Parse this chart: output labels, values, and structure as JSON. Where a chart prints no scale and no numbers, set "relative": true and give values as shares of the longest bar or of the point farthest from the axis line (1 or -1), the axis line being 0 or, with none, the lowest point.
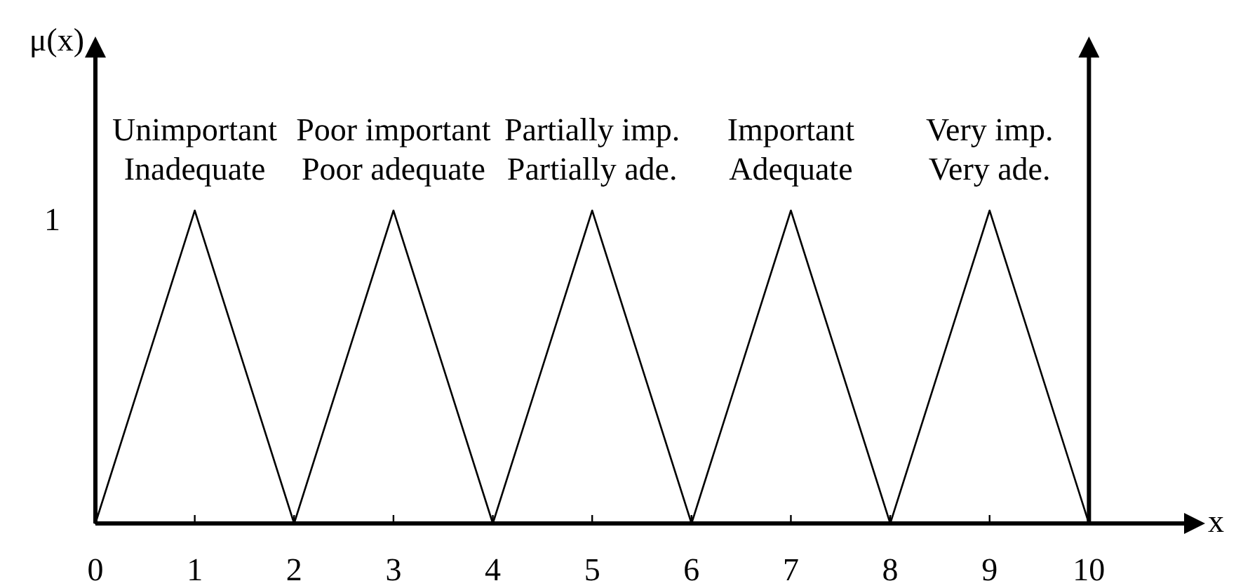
{
  "chart_data": {
    "type": "line",
    "xlabel": "x",
    "ylabel": "μ(x)",
    "relative": true,
    "x": [
      0,
      1,
      2,
      3,
      4,
      5,
      6,
      7,
      8,
      9,
      10
    ],
    "series": [
      {
        "color": "#000000",
        "values": [
          0,
          1,
          0,
          1,
          0,
          1,
          0,
          1,
          0,
          1,
          0
        ]
      }
    ],
    "xlim": [
      0,
      11
    ],
    "xticks": [
      0,
      1,
      2,
      3,
      4,
      5,
      6,
      7,
      8,
      9,
      10
    ],
    "ref_lines": [
      {
        "axis": "x",
        "value": 10,
        "color": "#000000"
      }
    ],
    "annotations": [
      "1",
      {
        "text": "Unimportant\nInadequate",
        "x": 1,
        "y": 1
      },
      {
        "text": "Poor important\nPoor adequate",
        "x": 3,
        "y": 1
      },
      {
        "text": "Partially imp.\nPartially ade.",
        "x": 5,
        "y": 1
      },
      {
        "text": "Important\nAdequate",
        "x": 7,
        "y": 1
      },
      {
        "text": "Very imp.\nVery ade.",
        "x": 9,
        "y": 1
      }
    ]
  }
}
